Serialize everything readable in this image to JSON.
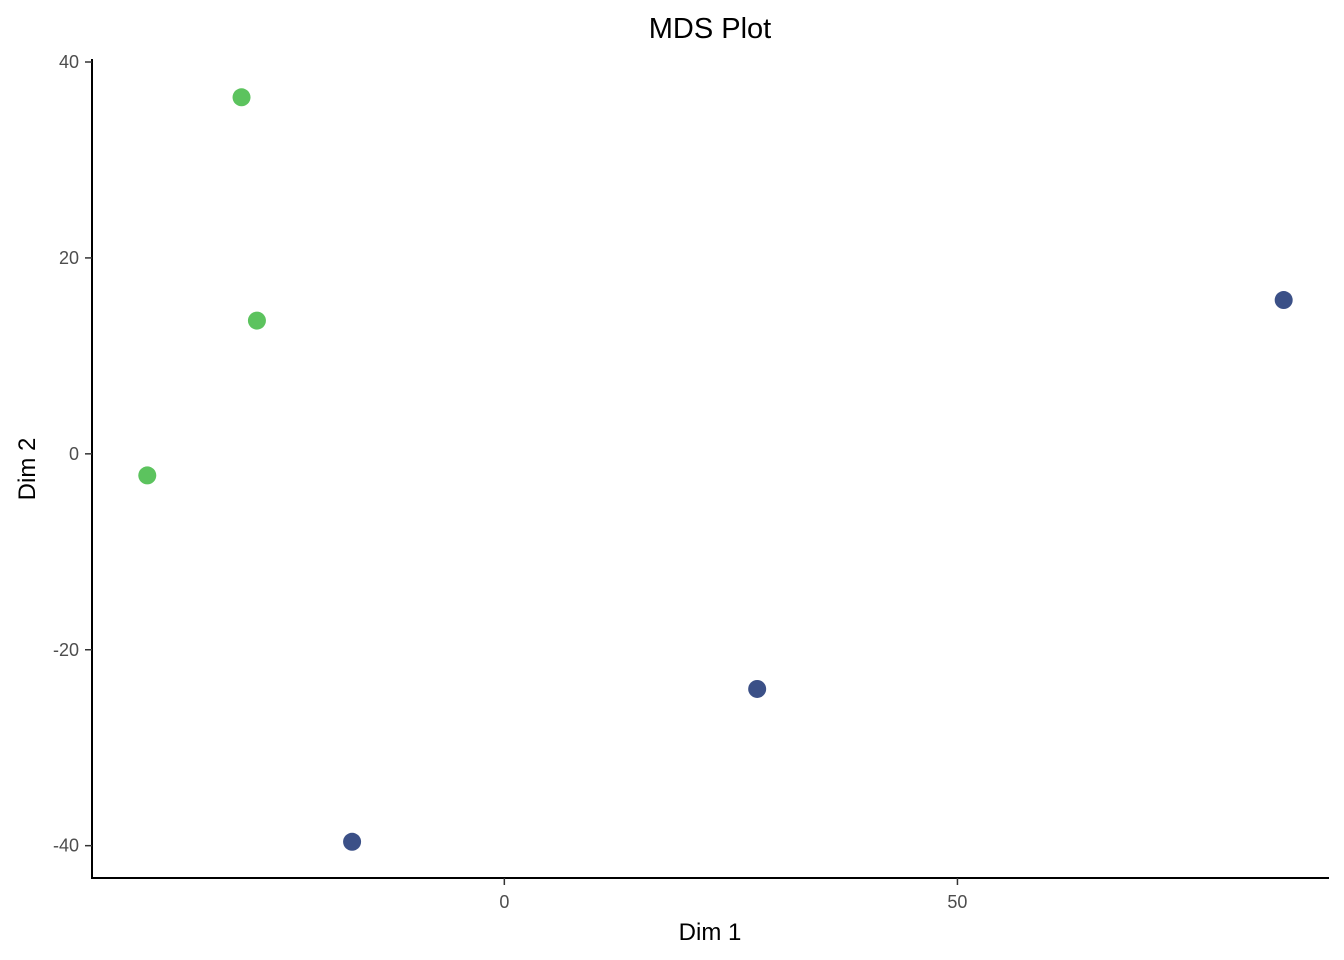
{
  "chart_data": {
    "type": "scatter",
    "title": "MDS Plot",
    "xlabel": "Dim 1",
    "ylabel": "Dim 2",
    "xlim": [
      -45.5,
      91.0
    ],
    "ylim": [
      -43.3,
      40.0
    ],
    "x_ticks": [
      0,
      50
    ],
    "y_ticks": [
      -40,
      -20,
      0,
      20,
      40
    ],
    "grid": false,
    "legend": "none",
    "series": [
      {
        "color": "#5cc35e",
        "points": [
          {
            "x": -29.0,
            "y": 36.4
          },
          {
            "x": -27.3,
            "y": 13.6
          },
          {
            "x": -39.4,
            "y": -2.2
          }
        ]
      },
      {
        "color": "#3b5087",
        "points": [
          {
            "x": 86.0,
            "y": 15.7
          },
          {
            "x": 27.9,
            "y": -24.0
          },
          {
            "x": -16.8,
            "y": -39.6
          }
        ]
      }
    ]
  }
}
